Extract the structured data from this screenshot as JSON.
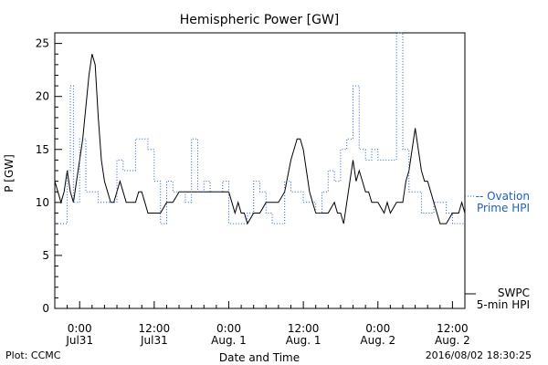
{
  "footer": {
    "plot_credit": "Plot: CCMC",
    "timestamp": "2016/08/02 18:30:25"
  },
  "chart_data": {
    "type": "line",
    "title": "Hemispheric Power [GW]",
    "xlabel": "Date and Time",
    "ylabel": "P [GW]",
    "ylim": [
      0,
      26
    ],
    "xlim": [
      -4,
      62
    ],
    "y_ticks": [
      0,
      5,
      10,
      15,
      20,
      25
    ],
    "x_ticks": [
      {
        "x": 0,
        "label1": "0:00",
        "label2": "Jul31"
      },
      {
        "x": 12,
        "label1": "12:00",
        "label2": "Jul31"
      },
      {
        "x": 24,
        "label1": "0:00",
        "label2": "Aug. 1"
      },
      {
        "x": 36,
        "label1": "12:00",
        "label2": "Aug. 1"
      },
      {
        "x": 48,
        "label1": "0:00",
        "label2": "Aug. 2"
      },
      {
        "x": 60,
        "label1": "12:00",
        "label2": "Aug. 2"
      }
    ],
    "x_unit": "hours since 2016-07-31 0:00 UT",
    "series": [
      {
        "name_line1": "SWPC",
        "name_line2": "5-min HPI",
        "color": "#000000",
        "style": "solid",
        "points": [
          [
            -4,
            12
          ],
          [
            -3.5,
            11
          ],
          [
            -3,
            10
          ],
          [
            -2.5,
            11
          ],
          [
            -2,
            13
          ],
          [
            -1.5,
            11
          ],
          [
            -1,
            10
          ],
          [
            -0.5,
            12
          ],
          [
            0,
            14
          ],
          [
            0.5,
            16
          ],
          [
            1,
            19
          ],
          [
            1.5,
            22
          ],
          [
            2,
            24
          ],
          [
            2.5,
            23
          ],
          [
            3,
            18
          ],
          [
            3.5,
            14
          ],
          [
            4,
            12
          ],
          [
            4.5,
            11
          ],
          [
            5,
            10
          ],
          [
            5.5,
            10
          ],
          [
            6,
            11
          ],
          [
            6.5,
            12
          ],
          [
            7,
            11
          ],
          [
            7.5,
            10
          ],
          [
            8,
            10
          ],
          [
            8.5,
            10
          ],
          [
            9,
            10
          ],
          [
            9.5,
            11
          ],
          [
            10,
            11
          ],
          [
            10.5,
            10
          ],
          [
            11,
            9
          ],
          [
            11.5,
            9
          ],
          [
            12,
            9
          ],
          [
            13,
            9
          ],
          [
            14,
            10
          ],
          [
            15,
            10
          ],
          [
            16,
            11
          ],
          [
            17,
            11
          ],
          [
            18,
            11
          ],
          [
            19,
            11
          ],
          [
            20,
            11
          ],
          [
            21,
            11
          ],
          [
            22,
            11
          ],
          [
            23,
            11
          ],
          [
            24,
            11
          ],
          [
            24.5,
            10
          ],
          [
            25,
            9
          ],
          [
            25.5,
            10
          ],
          [
            26,
            9
          ],
          [
            26.5,
            9
          ],
          [
            27,
            8
          ],
          [
            28,
            9
          ],
          [
            29,
            9
          ],
          [
            30,
            10
          ],
          [
            31,
            10
          ],
          [
            32,
            10
          ],
          [
            33,
            11
          ],
          [
            34,
            14
          ],
          [
            35,
            16
          ],
          [
            35.5,
            16
          ],
          [
            36,
            15
          ],
          [
            36.5,
            13
          ],
          [
            37,
            11
          ],
          [
            38,
            9
          ],
          [
            38.5,
            9
          ],
          [
            39,
            9
          ],
          [
            40,
            9
          ],
          [
            41,
            10
          ],
          [
            41.5,
            9
          ],
          [
            42,
            9
          ],
          [
            42.5,
            8
          ],
          [
            43,
            10
          ],
          [
            43.5,
            12
          ],
          [
            44,
            14
          ],
          [
            44.5,
            12
          ],
          [
            45,
            13
          ],
          [
            45.5,
            12
          ],
          [
            46,
            11
          ],
          [
            46.5,
            11
          ],
          [
            47,
            10
          ],
          [
            48,
            10
          ],
          [
            49,
            9
          ],
          [
            49.5,
            10
          ],
          [
            50,
            9
          ],
          [
            51,
            10
          ],
          [
            52,
            10
          ],
          [
            52.5,
            12
          ],
          [
            53,
            13
          ],
          [
            53.5,
            15
          ],
          [
            54,
            17
          ],
          [
            54.5,
            15
          ],
          [
            55,
            13
          ],
          [
            55.5,
            12
          ],
          [
            56,
            12
          ],
          [
            56.5,
            11
          ],
          [
            57,
            10
          ],
          [
            58,
            8
          ],
          [
            59,
            8
          ],
          [
            60,
            9
          ],
          [
            61,
            9
          ],
          [
            61.5,
            10
          ],
          [
            62,
            9
          ]
        ]
      },
      {
        "name_line1": "-- Ovation",
        "name_line2": "Prime HPI",
        "color": "#1f5fbf",
        "style": "dotted",
        "points": [
          [
            -4,
            8
          ],
          [
            -2,
            8
          ],
          [
            -2,
            13
          ],
          [
            -1.5,
            13
          ],
          [
            -1.5,
            21
          ],
          [
            -1,
            21
          ],
          [
            -1,
            10
          ],
          [
            0,
            10
          ],
          [
            0,
            16
          ],
          [
            1,
            16
          ],
          [
            1,
            11
          ],
          [
            3,
            11
          ],
          [
            3,
            10
          ],
          [
            6,
            10
          ],
          [
            6,
            14
          ],
          [
            7,
            14
          ],
          [
            7,
            13
          ],
          [
            9,
            13
          ],
          [
            9,
            16
          ],
          [
            11,
            16
          ],
          [
            11,
            15
          ],
          [
            12,
            15
          ],
          [
            12,
            12
          ],
          [
            13,
            12
          ],
          [
            13,
            8
          ],
          [
            14,
            8
          ],
          [
            14,
            12
          ],
          [
            15,
            12
          ],
          [
            15,
            11
          ],
          [
            17,
            11
          ],
          [
            17,
            10
          ],
          [
            18,
            10
          ],
          [
            18,
            16
          ],
          [
            19,
            16
          ],
          [
            19,
            11
          ],
          [
            20,
            11
          ],
          [
            20,
            12
          ],
          [
            21,
            12
          ],
          [
            21,
            11
          ],
          [
            23,
            11
          ],
          [
            23,
            12
          ],
          [
            24,
            12
          ],
          [
            24,
            8
          ],
          [
            27,
            8
          ],
          [
            27,
            9
          ],
          [
            28,
            9
          ],
          [
            28,
            12
          ],
          [
            29,
            12
          ],
          [
            29,
            11
          ],
          [
            30,
            11
          ],
          [
            30,
            9
          ],
          [
            31,
            9
          ],
          [
            31,
            8
          ],
          [
            33,
            8
          ],
          [
            33,
            12
          ],
          [
            34,
            12
          ],
          [
            34,
            11
          ],
          [
            36,
            11
          ],
          [
            36,
            10
          ],
          [
            38,
            10
          ],
          [
            38,
            9
          ],
          [
            39,
            9
          ],
          [
            39,
            11
          ],
          [
            40,
            11
          ],
          [
            40,
            13
          ],
          [
            41,
            13
          ],
          [
            41,
            12
          ],
          [
            42,
            12
          ],
          [
            42,
            15
          ],
          [
            43,
            15
          ],
          [
            43,
            16
          ],
          [
            44,
            16
          ],
          [
            44,
            21
          ],
          [
            45,
            21
          ],
          [
            45,
            15
          ],
          [
            46,
            15
          ],
          [
            46,
            14
          ],
          [
            47,
            14
          ],
          [
            47,
            15
          ],
          [
            48,
            15
          ],
          [
            48,
            14
          ],
          [
            51,
            14
          ],
          [
            51,
            26
          ],
          [
            52,
            26
          ],
          [
            52,
            15
          ],
          [
            53,
            15
          ],
          [
            53,
            11
          ],
          [
            55,
            11
          ],
          [
            55,
            9
          ],
          [
            57,
            9
          ],
          [
            57,
            10
          ],
          [
            59,
            10
          ],
          [
            59,
            9
          ],
          [
            60,
            9
          ],
          [
            60,
            8
          ],
          [
            62,
            8
          ]
        ]
      }
    ],
    "legend": "right",
    "grid": false
  }
}
